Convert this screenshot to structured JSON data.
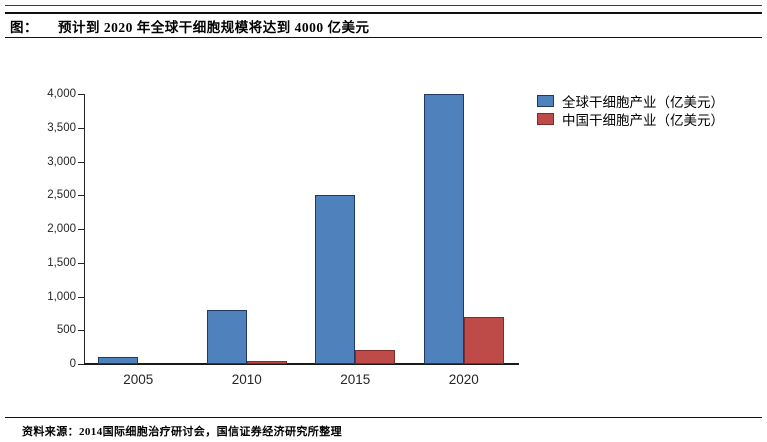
{
  "header": {
    "figure_label": "图：",
    "title": "预计到 2020 年全球干细胞规模将达到 4000 亿美元"
  },
  "chart_data": {
    "type": "bar",
    "title": "预计到 2020 年全球干细胞规模将达到 4000 亿美元",
    "categories": [
      "2005",
      "2010",
      "2015",
      "2020"
    ],
    "series": [
      {
        "name": "全球干细胞产业（亿美元）",
        "values": [
          100,
          800,
          2500,
          4000
        ],
        "fill": "#4F81BD",
        "border": "#1F3864"
      },
      {
        "name": "中国干细胞产业（亿美元）",
        "values": [
          0,
          50,
          200,
          700
        ],
        "fill": "#BE4B48",
        "border": "#7B2D2A"
      }
    ],
    "ylim": [
      0,
      4000
    ],
    "ytick_step": 500,
    "ytick_labels": [
      "0",
      "500",
      "1,000",
      "1,500",
      "2,000",
      "2,500",
      "3,000",
      "3,500",
      "4,000"
    ],
    "grid": false,
    "legend_position": "right",
    "xlabel": "",
    "ylabel": ""
  },
  "footer": {
    "source": "资料来源：2014国际细胞治疗研讨会，国信证券经济研究所整理"
  }
}
